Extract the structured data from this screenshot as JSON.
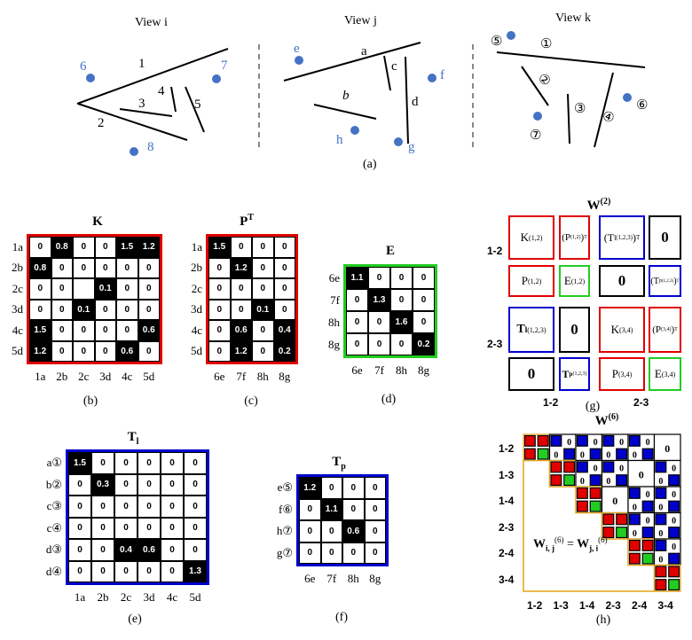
{
  "colors": {
    "point": "#4472c4",
    "red": "#e00000",
    "blue": "#0000cc",
    "green": "#22cc22",
    "orange": "#e8a317",
    "dash": "#888888"
  },
  "views": {
    "view_i": {
      "title": "View i",
      "point_labels": [
        "6",
        "7",
        "8"
      ],
      "line_labels": [
        "1",
        "2",
        "3",
        "4",
        "5"
      ]
    },
    "view_j": {
      "title": "View j",
      "point_labels": [
        "e",
        "f",
        "h",
        "g"
      ],
      "line_labels": [
        "a",
        "c",
        "b",
        "d"
      ]
    },
    "view_k": {
      "title": "View k",
      "point_labels": [
        "⑤",
        "⑥",
        "⑦"
      ],
      "line_labels": [
        "①",
        "②",
        "③",
        "④"
      ]
    },
    "caption": "(a)"
  },
  "matrix_K": {
    "title": "K",
    "rows": [
      "1a",
      "2b",
      "2c",
      "3d",
      "4c",
      "5d"
    ],
    "cols": [
      "1a",
      "2b",
      "2c",
      "3d",
      "4c",
      "5d"
    ],
    "values": [
      [
        "0",
        "0.8",
        "0",
        "0",
        "1.5",
        "1.2"
      ],
      [
        "0.8",
        "0",
        "0",
        "0",
        "0",
        "0"
      ],
      [
        "0",
        "0",
        "",
        "0.1",
        "0",
        "0"
      ],
      [
        "0",
        "0",
        "0.1",
        "0",
        "0",
        "0"
      ],
      [
        "1.5",
        "0",
        "0",
        "0",
        "0",
        "0.6"
      ],
      [
        "1.2",
        "0",
        "0",
        "0",
        "0.6",
        "0"
      ]
    ],
    "caption": "(b)"
  },
  "matrix_PT": {
    "title": "P",
    "title_sup": "T",
    "rows": [
      "1a",
      "2b",
      "2c",
      "3d",
      "4c",
      "5d"
    ],
    "cols": [
      "6e",
      "7f",
      "8h",
      "8g"
    ],
    "values": [
      [
        "1.5",
        "0",
        "0",
        "0"
      ],
      [
        "0",
        "1.2",
        "0",
        "0"
      ],
      [
        "0",
        "0",
        "0",
        "0"
      ],
      [
        "0",
        "0",
        "0.1",
        "0"
      ],
      [
        "0",
        "0.6",
        "0",
        "0.4"
      ],
      [
        "0",
        "1.2",
        "0",
        "0.2"
      ]
    ],
    "caption": "(c)"
  },
  "matrix_E": {
    "title": "E",
    "rows": [
      "6e",
      "7f",
      "8h",
      "8g"
    ],
    "cols": [
      "6e",
      "7f",
      "8h",
      "8g"
    ],
    "values": [
      [
        "1.1",
        "0",
        "0",
        "0"
      ],
      [
        "0",
        "1.3",
        "0",
        "0"
      ],
      [
        "0",
        "0",
        "1.6",
        "0"
      ],
      [
        "0",
        "0",
        "0",
        "0.2"
      ]
    ],
    "caption": "(d)"
  },
  "matrix_Tl": {
    "title": "T",
    "title_sub": "l",
    "rows": [
      "a①",
      "b②",
      "c③",
      "c④",
      "d③",
      "d④"
    ],
    "cols": [
      "1a",
      "2b",
      "2c",
      "3d",
      "4c",
      "5d"
    ],
    "values": [
      [
        "1.5",
        "0",
        "0",
        "0",
        "0",
        "0"
      ],
      [
        "0",
        "0.3",
        "0",
        "0",
        "0",
        "0"
      ],
      [
        "0",
        "0",
        "0",
        "0",
        "0",
        "0"
      ],
      [
        "0",
        "0",
        "0",
        "0",
        "0",
        "0"
      ],
      [
        "0",
        "0",
        "0.4",
        "0.6",
        "0",
        "0"
      ],
      [
        "0",
        "0",
        "0",
        "0",
        "0",
        "1.3"
      ]
    ],
    "caption": "(e)"
  },
  "matrix_Tp": {
    "title": "T",
    "title_sub": "p",
    "rows": [
      "e⑤",
      "f⑥",
      "h⑦",
      "g⑦"
    ],
    "cols": [
      "6e",
      "7f",
      "8h",
      "8g"
    ],
    "values": [
      [
        "1.2",
        "0",
        "0",
        "0"
      ],
      [
        "0",
        "1.1",
        "0",
        "0"
      ],
      [
        "0",
        "0",
        "0.6",
        "0"
      ],
      [
        "0",
        "0",
        "0",
        "0"
      ]
    ],
    "caption": "(f)"
  },
  "W2": {
    "title": "W",
    "title_sup": "(2)",
    "row_labels": [
      "1-2",
      "2-3"
    ],
    "col_labels": [
      "1-2",
      "2-3"
    ],
    "blocks": {
      "K12": "K",
      "K12_sup": "(1,2)",
      "PT12": "(P",
      "PT12_sup": "(1,2)",
      "PT12_close": ")",
      "PT12_t": "T",
      "TlT": "(T",
      "TlT_sub": "l",
      "TlT_sup": "(1,2,3)",
      "TlT_close": ")",
      "TlT_t": "T",
      "zero": "0",
      "P12": "P",
      "P12_sup": "(1,2)",
      "E12": "E",
      "E12_sup": "(1,2)",
      "TpT": "(T",
      "TpT_sub": "p",
      "TpT_sup": "(1,2,3)",
      "TpT_close": ")",
      "TpT_t": "T",
      "Tl": "T",
      "Tl_sub": "l",
      "Tl_sup": "(1,2,3)",
      "K34": "K",
      "K34_sup": "(3,4)",
      "PT34": "(P",
      "PT34_sup": "(3,4)",
      "PT34_close": ")",
      "PT34_t": "T",
      "Tp": "T",
      "Tp_sub": "p",
      "Tp_sup": "(1,2,3)",
      "P34": "P",
      "P34_sup": "(3,4)",
      "E34": "E",
      "E34_sup": "(3,4)"
    },
    "caption": "(g)"
  },
  "W6": {
    "title": "W",
    "title_sup": "(6)",
    "labels": [
      "1-2",
      "1-3",
      "1-4",
      "2-3",
      "2-4",
      "3-4"
    ],
    "zero": "0",
    "formula": {
      "w": "W",
      "sub_ij": "i, j",
      "sup": "(6)",
      "eq": "=",
      "sub_ji": "j, i"
    },
    "caption": "(h)"
  }
}
